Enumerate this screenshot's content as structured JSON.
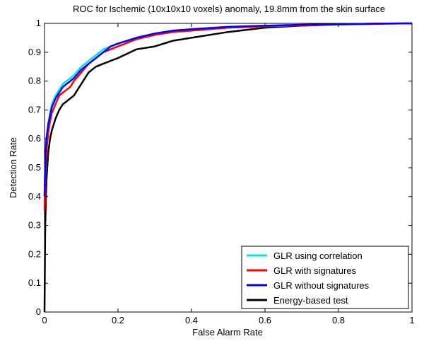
{
  "chart_data": {
    "type": "line",
    "title": "ROC for Ischemic (10x10x10 voxels) anomaly, 19.8mm from the skin surface",
    "xlabel": "False Alarm Rate",
    "ylabel": "Detection Rate",
    "xlim": [
      0,
      1
    ],
    "ylim": [
      0,
      1
    ],
    "xticks": [
      "0",
      "0.2",
      "0.4",
      "0.6",
      "0.8",
      "1"
    ],
    "yticks": [
      "0",
      "0.1",
      "0.2",
      "0.3",
      "0.4",
      "0.5",
      "0.6",
      "0.7",
      "0.8",
      "0.9",
      "1"
    ],
    "grid": false,
    "legend_position": "bottom-right",
    "series": [
      {
        "name": "GLR using correlation",
        "color": "#00e5e5",
        "x": [
          0,
          0.002,
          0.005,
          0.01,
          0.015,
          0.02,
          0.03,
          0.04,
          0.05,
          0.06,
          0.07,
          0.08,
          0.1,
          0.12,
          0.14,
          0.16,
          0.18,
          0.2,
          0.25,
          0.3,
          0.35,
          0.4,
          0.5,
          0.6,
          0.7,
          0.8,
          0.9,
          1.0
        ],
        "y": [
          0.38,
          0.5,
          0.58,
          0.65,
          0.69,
          0.72,
          0.75,
          0.77,
          0.79,
          0.8,
          0.81,
          0.82,
          0.85,
          0.87,
          0.89,
          0.91,
          0.92,
          0.93,
          0.95,
          0.96,
          0.97,
          0.975,
          0.985,
          0.99,
          0.993,
          0.996,
          0.998,
          1.0
        ]
      },
      {
        "name": "GLR with signatures",
        "color": "#ff0000",
        "x": [
          0,
          0.002,
          0.005,
          0.01,
          0.015,
          0.02,
          0.03,
          0.04,
          0.05,
          0.06,
          0.07,
          0.08,
          0.1,
          0.12,
          0.14,
          0.16,
          0.18,
          0.2,
          0.25,
          0.3,
          0.35,
          0.4,
          0.5,
          0.6,
          0.7,
          0.8,
          0.9,
          1.0
        ],
        "y": [
          0.35,
          0.45,
          0.55,
          0.62,
          0.66,
          0.69,
          0.72,
          0.75,
          0.76,
          0.77,
          0.78,
          0.8,
          0.83,
          0.86,
          0.88,
          0.9,
          0.91,
          0.92,
          0.945,
          0.96,
          0.97,
          0.975,
          0.985,
          0.99,
          0.993,
          0.996,
          0.998,
          1.0
        ]
      },
      {
        "name": "GLR without signatures",
        "color": "#0000ff",
        "x": [
          0,
          0.002,
          0.005,
          0.01,
          0.015,
          0.02,
          0.03,
          0.04,
          0.05,
          0.06,
          0.07,
          0.08,
          0.1,
          0.12,
          0.14,
          0.16,
          0.18,
          0.2,
          0.25,
          0.3,
          0.35,
          0.4,
          0.5,
          0.6,
          0.7,
          0.8,
          0.9,
          1.0
        ],
        "y": [
          0.4,
          0.52,
          0.6,
          0.65,
          0.68,
          0.71,
          0.74,
          0.76,
          0.78,
          0.79,
          0.8,
          0.81,
          0.84,
          0.86,
          0.88,
          0.9,
          0.92,
          0.93,
          0.95,
          0.965,
          0.975,
          0.98,
          0.988,
          0.992,
          0.995,
          0.997,
          0.999,
          1.0
        ]
      },
      {
        "name": "Energy-based test",
        "color": "#000000",
        "x": [
          0,
          0.002,
          0.005,
          0.01,
          0.015,
          0.02,
          0.03,
          0.04,
          0.05,
          0.06,
          0.07,
          0.08,
          0.09,
          0.1,
          0.12,
          0.14,
          0.16,
          0.18,
          0.2,
          0.25,
          0.3,
          0.35,
          0.4,
          0.5,
          0.6,
          0.7,
          0.8,
          0.9,
          1.0
        ],
        "y": [
          0.0,
          0.3,
          0.45,
          0.55,
          0.6,
          0.63,
          0.67,
          0.7,
          0.72,
          0.73,
          0.74,
          0.75,
          0.77,
          0.79,
          0.83,
          0.85,
          0.86,
          0.87,
          0.88,
          0.91,
          0.92,
          0.94,
          0.95,
          0.97,
          0.985,
          0.992,
          0.996,
          0.999,
          1.0
        ]
      }
    ]
  }
}
